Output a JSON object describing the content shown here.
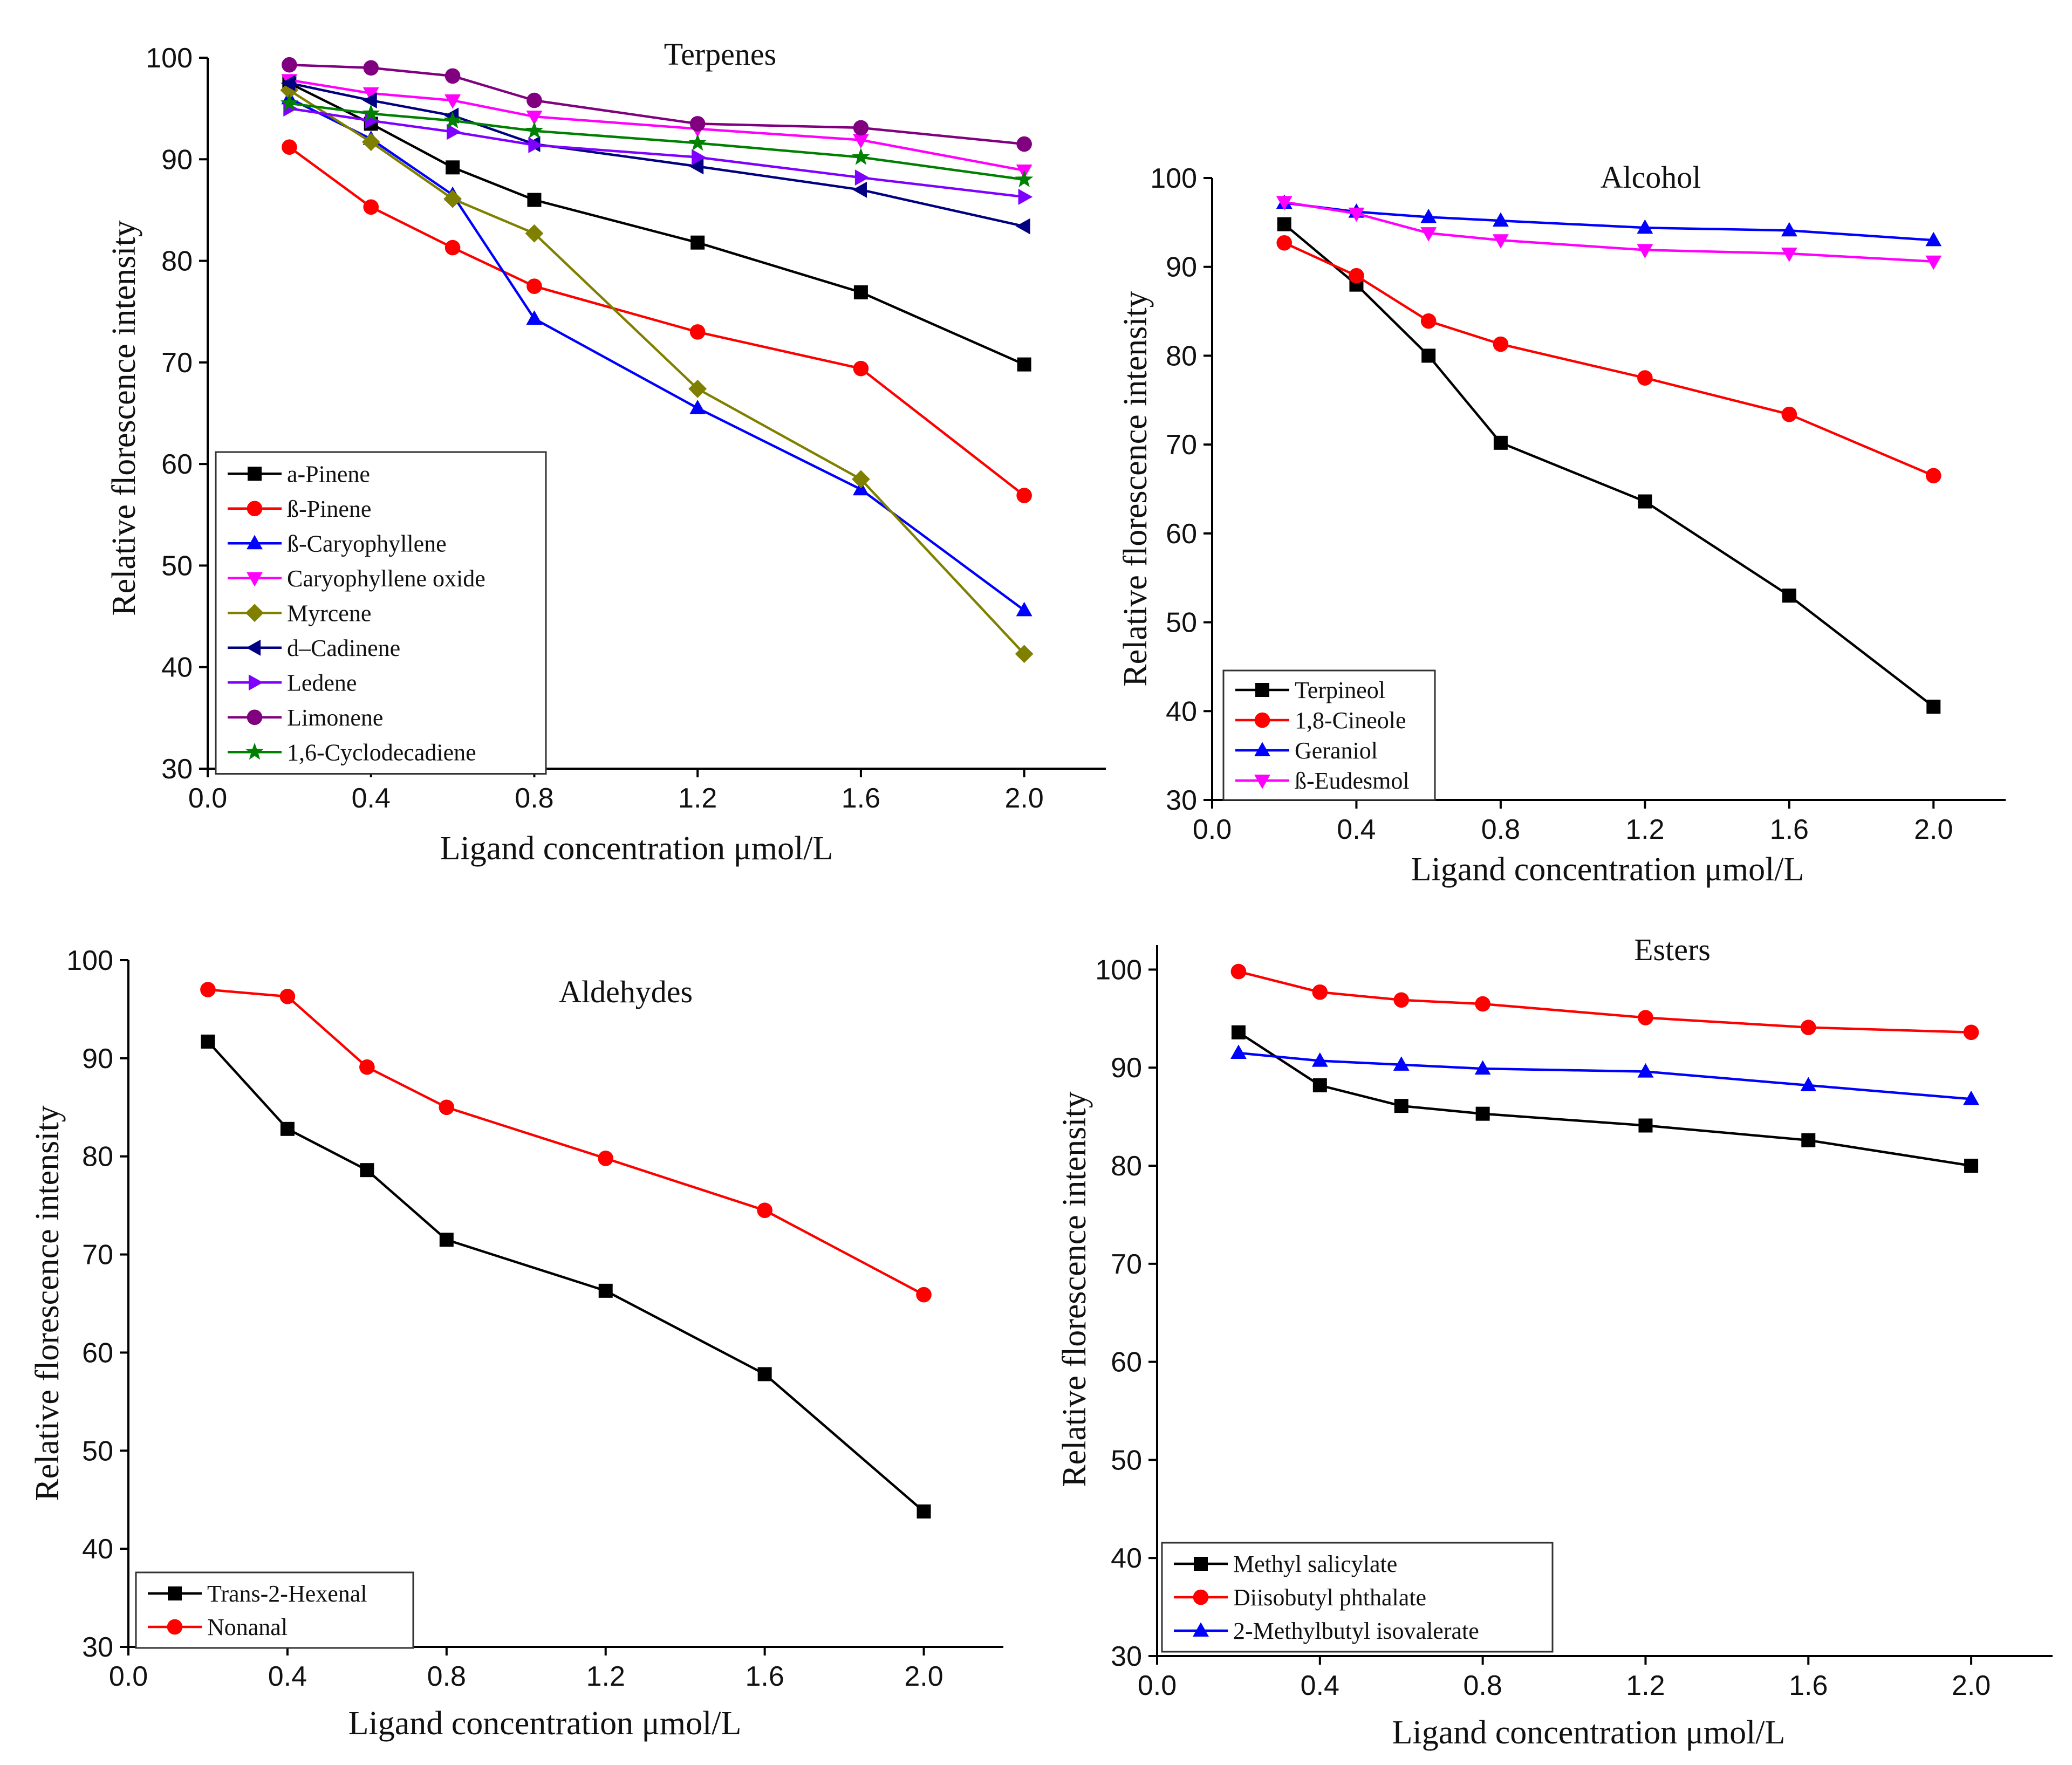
{
  "chart_data": [
    {
      "id": "terpenes",
      "type": "line",
      "title": "Terpenes",
      "xlabel": "Ligand concentration μmol/L",
      "ylabel": "Relative florescence intensity",
      "x_ticks": [
        0.0,
        0.4,
        0.8,
        1.2,
        1.6,
        2.0
      ],
      "x_tick_labels": [
        "0.0",
        "0.4",
        "0.8",
        "1.2",
        "1.6",
        "2.0"
      ],
      "y_ticks": [
        30,
        40,
        50,
        60,
        70,
        80,
        90,
        100
      ],
      "y_tick_labels": [
        "30",
        "40",
        "50",
        "60",
        "70",
        "80",
        "90",
        "100"
      ],
      "xlim": [
        0,
        2.2
      ],
      "ylim": [
        30,
        100
      ],
      "legend_position": "bottom-left",
      "x": [
        0.2,
        0.4,
        0.6,
        0.8,
        1.2,
        1.6,
        2.0
      ],
      "series": [
        {
          "name": "a-Pinene",
          "color": "#000000",
          "marker": "square",
          "values": [
            97.5,
            93.5,
            89.2,
            86.0,
            81.8,
            76.9,
            69.8
          ]
        },
        {
          "name": "ß-Pinene",
          "color": "#ff0000",
          "marker": "circle",
          "values": [
            91.2,
            85.3,
            81.3,
            77.5,
            73.0,
            69.4,
            56.9
          ]
        },
        {
          "name": "ß-Caryophyllene",
          "color": "#0000ff",
          "marker": "triangle-up",
          "values": [
            96.0,
            92.0,
            86.5,
            74.3,
            65.5,
            57.5,
            45.6
          ]
        },
        {
          "name": "Caryophyllene oxide",
          "color": "#ff00ff",
          "marker": "triangle-down",
          "values": [
            97.8,
            96.5,
            95.8,
            94.2,
            93.0,
            91.9,
            88.9
          ]
        },
        {
          "name": "Myrcene",
          "color": "#808000",
          "marker": "diamond",
          "values": [
            96.8,
            91.7,
            86.1,
            82.7,
            67.4,
            58.5,
            41.3
          ]
        },
        {
          "name": "d–Cadinene",
          "color": "#000080",
          "marker": "triangle-left",
          "values": [
            97.5,
            95.8,
            94.3,
            91.5,
            89.3,
            87.0,
            83.4
          ]
        },
        {
          "name": "Ledene",
          "color": "#8000ff",
          "marker": "triangle-right",
          "values": [
            95.0,
            93.8,
            92.7,
            91.4,
            90.2,
            88.2,
            86.3
          ]
        },
        {
          "name": "Limonene",
          "color": "#800080",
          "marker": "circle",
          "values": [
            99.3,
            99.0,
            98.2,
            95.8,
            93.5,
            93.1,
            91.5
          ]
        },
        {
          "name": "1,6-Cyclodecadiene",
          "color": "#008000",
          "marker": "star",
          "values": [
            95.5,
            94.5,
            93.8,
            92.8,
            91.6,
            90.2,
            88.0
          ]
        }
      ]
    },
    {
      "id": "alcohol",
      "type": "line",
      "title": "Alcohol",
      "xlabel": "Ligand concentration μmol/L",
      "ylabel": "Relative florescence intensity",
      "x_ticks": [
        0.0,
        0.4,
        0.8,
        1.2,
        1.6,
        2.0
      ],
      "x_tick_labels": [
        "0.0",
        "0.4",
        "0.8",
        "1.2",
        "1.6",
        "2.0"
      ],
      "y_ticks": [
        30,
        40,
        50,
        60,
        70,
        80,
        90,
        100
      ],
      "y_tick_labels": [
        "30",
        "40",
        "50",
        "60",
        "70",
        "80",
        "90",
        "100"
      ],
      "xlim": [
        0,
        2.2
      ],
      "ylim": [
        30,
        100
      ],
      "legend_position": "bottom-left",
      "x": [
        0.2,
        0.4,
        0.6,
        0.8,
        1.2,
        1.6,
        2.0
      ],
      "series": [
        {
          "name": "Terpineol",
          "color": "#000000",
          "marker": "square",
          "values": [
            94.8,
            88.0,
            80.0,
            70.2,
            63.6,
            53.0,
            40.5
          ]
        },
        {
          "name": "1,8-Cineole",
          "color": "#ff0000",
          "marker": "circle",
          "values": [
            92.7,
            89.0,
            83.9,
            81.3,
            77.5,
            73.4,
            66.5
          ]
        },
        {
          "name": "Geraniol",
          "color": "#0000ff",
          "marker": "triangle-up",
          "values": [
            97.2,
            96.2,
            95.6,
            95.2,
            94.4,
            94.1,
            93.0
          ]
        },
        {
          "name": "ß-Eudesmol",
          "color": "#ff00ff",
          "marker": "triangle-down",
          "values": [
            97.3,
            96.0,
            93.8,
            93.0,
            91.9,
            91.5,
            90.6
          ]
        }
      ]
    },
    {
      "id": "aldehydes",
      "type": "line",
      "title": "Aldehydes",
      "xlabel": "Ligand concentration μmol/L",
      "ylabel": "Relative florescence intensity",
      "x_ticks": [
        0.0,
        0.4,
        0.8,
        1.2,
        1.6,
        2.0
      ],
      "x_tick_labels": [
        "0.0",
        "0.4",
        "0.8",
        "1.2",
        "1.6",
        "2.0"
      ],
      "y_ticks": [
        30,
        40,
        50,
        60,
        70,
        80,
        90,
        100
      ],
      "y_tick_labels": [
        "30",
        "40",
        "50",
        "60",
        "70",
        "80",
        "90",
        "100"
      ],
      "xlim": [
        0,
        2.2
      ],
      "ylim": [
        30,
        100
      ],
      "legend_position": "bottom-left",
      "x": [
        0.2,
        0.4,
        0.6,
        0.8,
        1.2,
        1.6,
        2.0
      ],
      "series": [
        {
          "name": "Trans-2-Hexenal",
          "color": "#000000",
          "marker": "square",
          "values": [
            91.7,
            82.8,
            78.6,
            71.5,
            66.3,
            57.8,
            43.8
          ]
        },
        {
          "name": "Nonanal",
          "color": "#ff0000",
          "marker": "circle",
          "values": [
            97.0,
            96.3,
            89.1,
            85.0,
            79.8,
            74.5,
            65.9
          ]
        }
      ]
    },
    {
      "id": "esters",
      "type": "line",
      "title": "Esters",
      "xlabel": "Ligand concentration μmol/L",
      "ylabel": "Relative florescence intensity",
      "x_ticks": [
        0.0,
        0.4,
        0.8,
        1.2,
        1.6,
        2.0
      ],
      "x_tick_labels": [
        "0.0",
        "0.4",
        "0.8",
        "1.2",
        "1.6",
        "2.0"
      ],
      "y_ticks": [
        30,
        40,
        50,
        60,
        70,
        80,
        90,
        100
      ],
      "y_tick_labels": [
        "30",
        "40",
        "50",
        "60",
        "70",
        "80",
        "90",
        "100"
      ],
      "xlim": [
        0,
        2.2
      ],
      "ylim": [
        30,
        102.5
      ],
      "legend_position": "bottom-left",
      "x": [
        0.2,
        0.4,
        0.6,
        0.8,
        1.2,
        1.6,
        2.0
      ],
      "series": [
        {
          "name": "Methyl salicylate",
          "color": "#000000",
          "marker": "square",
          "values": [
            93.6,
            88.2,
            86.1,
            85.3,
            84.1,
            82.6,
            80.0
          ]
        },
        {
          "name": "Diisobutyl phthalate",
          "color": "#ff0000",
          "marker": "circle",
          "values": [
            99.8,
            97.7,
            96.9,
            96.5,
            95.1,
            94.1,
            93.6
          ]
        },
        {
          "name": "2-Methylbutyl isovalerate",
          "color": "#0000ff",
          "marker": "triangle-up",
          "values": [
            91.5,
            90.7,
            90.3,
            89.9,
            89.6,
            88.2,
            86.8
          ]
        }
      ]
    }
  ]
}
